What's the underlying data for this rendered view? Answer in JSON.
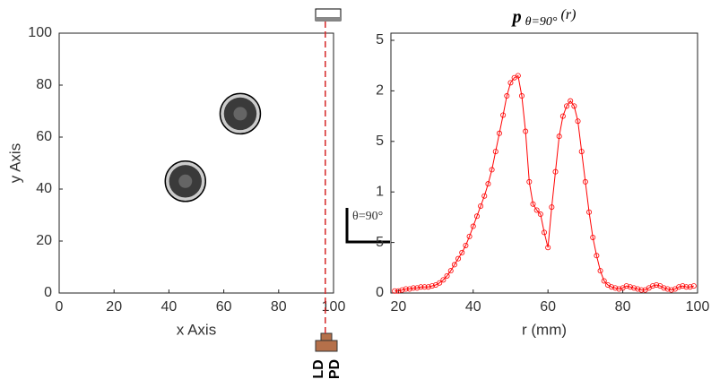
{
  "chart_data": [
    {
      "type": "scatter",
      "xlabel": "x Axis",
      "ylabel": "y Axis",
      "x": [
        46,
        66
      ],
      "y": [
        43,
        69
      ],
      "xlim": [
        0,
        100
      ],
      "ylim": [
        0,
        100
      ],
      "xticks": [
        0,
        20,
        40,
        60,
        80,
        100
      ],
      "yticks": [
        0,
        20,
        40,
        60,
        80,
        100
      ],
      "beam_x": 97,
      "beam_color": "#d62728",
      "annotation": "θ=90°",
      "source_label": "LD",
      "detector_label": "PD"
    },
    {
      "type": "line",
      "title": "p",
      "title_subscript": "θ=90°",
      "title_suffix": "(r)",
      "xlabel": "r (mm)",
      "x": [
        19,
        20,
        21,
        22,
        23,
        24,
        25,
        26,
        27,
        28,
        29,
        30,
        31,
        32,
        33,
        34,
        35,
        36,
        37,
        38,
        39,
        40,
        41,
        42,
        43,
        44,
        45,
        46,
        47,
        48,
        49,
        50,
        51,
        52,
        53,
        54,
        55,
        56,
        57,
        58,
        59,
        60,
        61,
        62,
        63,
        64,
        65,
        66,
        67,
        68,
        69,
        70,
        71,
        72,
        73,
        74,
        75,
        76,
        77,
        78,
        79,
        80,
        81,
        82,
        83,
        84,
        85,
        86,
        87,
        88,
        89,
        90,
        91,
        92,
        93,
        94,
        95,
        96,
        97,
        98,
        99
      ],
      "series": [
        {
          "color": "#ff0000",
          "values": [
            0.02,
            0.02,
            0.03,
            0.04,
            0.04,
            0.05,
            0.05,
            0.06,
            0.06,
            0.06,
            0.07,
            0.08,
            0.1,
            0.13,
            0.17,
            0.22,
            0.28,
            0.34,
            0.4,
            0.47,
            0.56,
            0.66,
            0.76,
            0.86,
            0.96,
            1.08,
            1.22,
            1.4,
            1.58,
            1.76,
            1.95,
            2.08,
            2.13,
            2.15,
            1.95,
            1.6,
            1.1,
            0.88,
            0.82,
            0.78,
            0.6,
            0.45,
            0.85,
            1.2,
            1.55,
            1.75,
            1.85,
            1.9,
            1.85,
            1.7,
            1.4,
            1.1,
            0.8,
            0.55,
            0.37,
            0.22,
            0.12,
            0.08,
            0.06,
            0.05,
            0.04,
            0.05,
            0.07,
            0.06,
            0.05,
            0.04,
            0.03,
            0.03,
            0.05,
            0.07,
            0.08,
            0.07,
            0.05,
            0.04,
            0.03,
            0.04,
            0.06,
            0.07,
            0.06,
            0.06,
            0.07
          ]
        }
      ],
      "xlim": [
        18,
        100
      ],
      "ylim": [
        0,
        2.5
      ],
      "xticks": [
        20,
        40,
        60,
        80,
        100
      ],
      "yticks": [
        0,
        {
          "value": 0.5,
          "label": "5"
        },
        1,
        {
          "value": 1.5,
          "label": "5"
        },
        2,
        {
          "value": 2.5,
          "label": "5"
        }
      ]
    }
  ]
}
